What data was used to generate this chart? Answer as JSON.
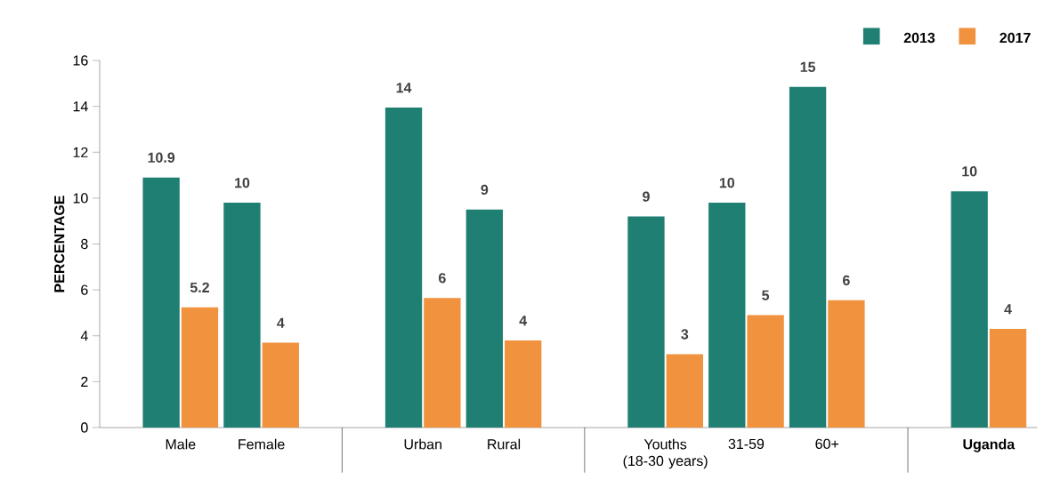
{
  "chart_data": {
    "type": "bar",
    "categories": [
      "Male",
      "Female",
      null,
      "Urban",
      "Rural",
      null,
      "Youths (18-30 years)",
      "31-59",
      "60+",
      null,
      "Uganda"
    ],
    "series": [
      {
        "name": "2013",
        "color": "#1f7f72",
        "values": [
          10.9,
          9.8,
          null,
          13.95,
          9.5,
          null,
          9.2,
          9.8,
          14.85,
          null,
          10.3
        ],
        "value_labels": [
          "10.9",
          "10",
          null,
          "14",
          "9",
          null,
          "9",
          "10",
          "15",
          null,
          "10"
        ]
      },
      {
        "name": "2017",
        "color": "#f0923e",
        "values": [
          5.24,
          3.7,
          null,
          5.65,
          3.8,
          null,
          3.2,
          4.9,
          5.55,
          null,
          4.3
        ],
        "value_labels": [
          "5.2",
          "4",
          null,
          "6",
          "4",
          null,
          "3",
          "5",
          "6",
          null,
          "4"
        ]
      }
    ],
    "ylabel": "PERCENTAGE",
    "ylim": [
      0,
      16
    ],
    "yticks": [
      0,
      2,
      4,
      6,
      8,
      10,
      12,
      14,
      16
    ],
    "legend": "top right"
  }
}
